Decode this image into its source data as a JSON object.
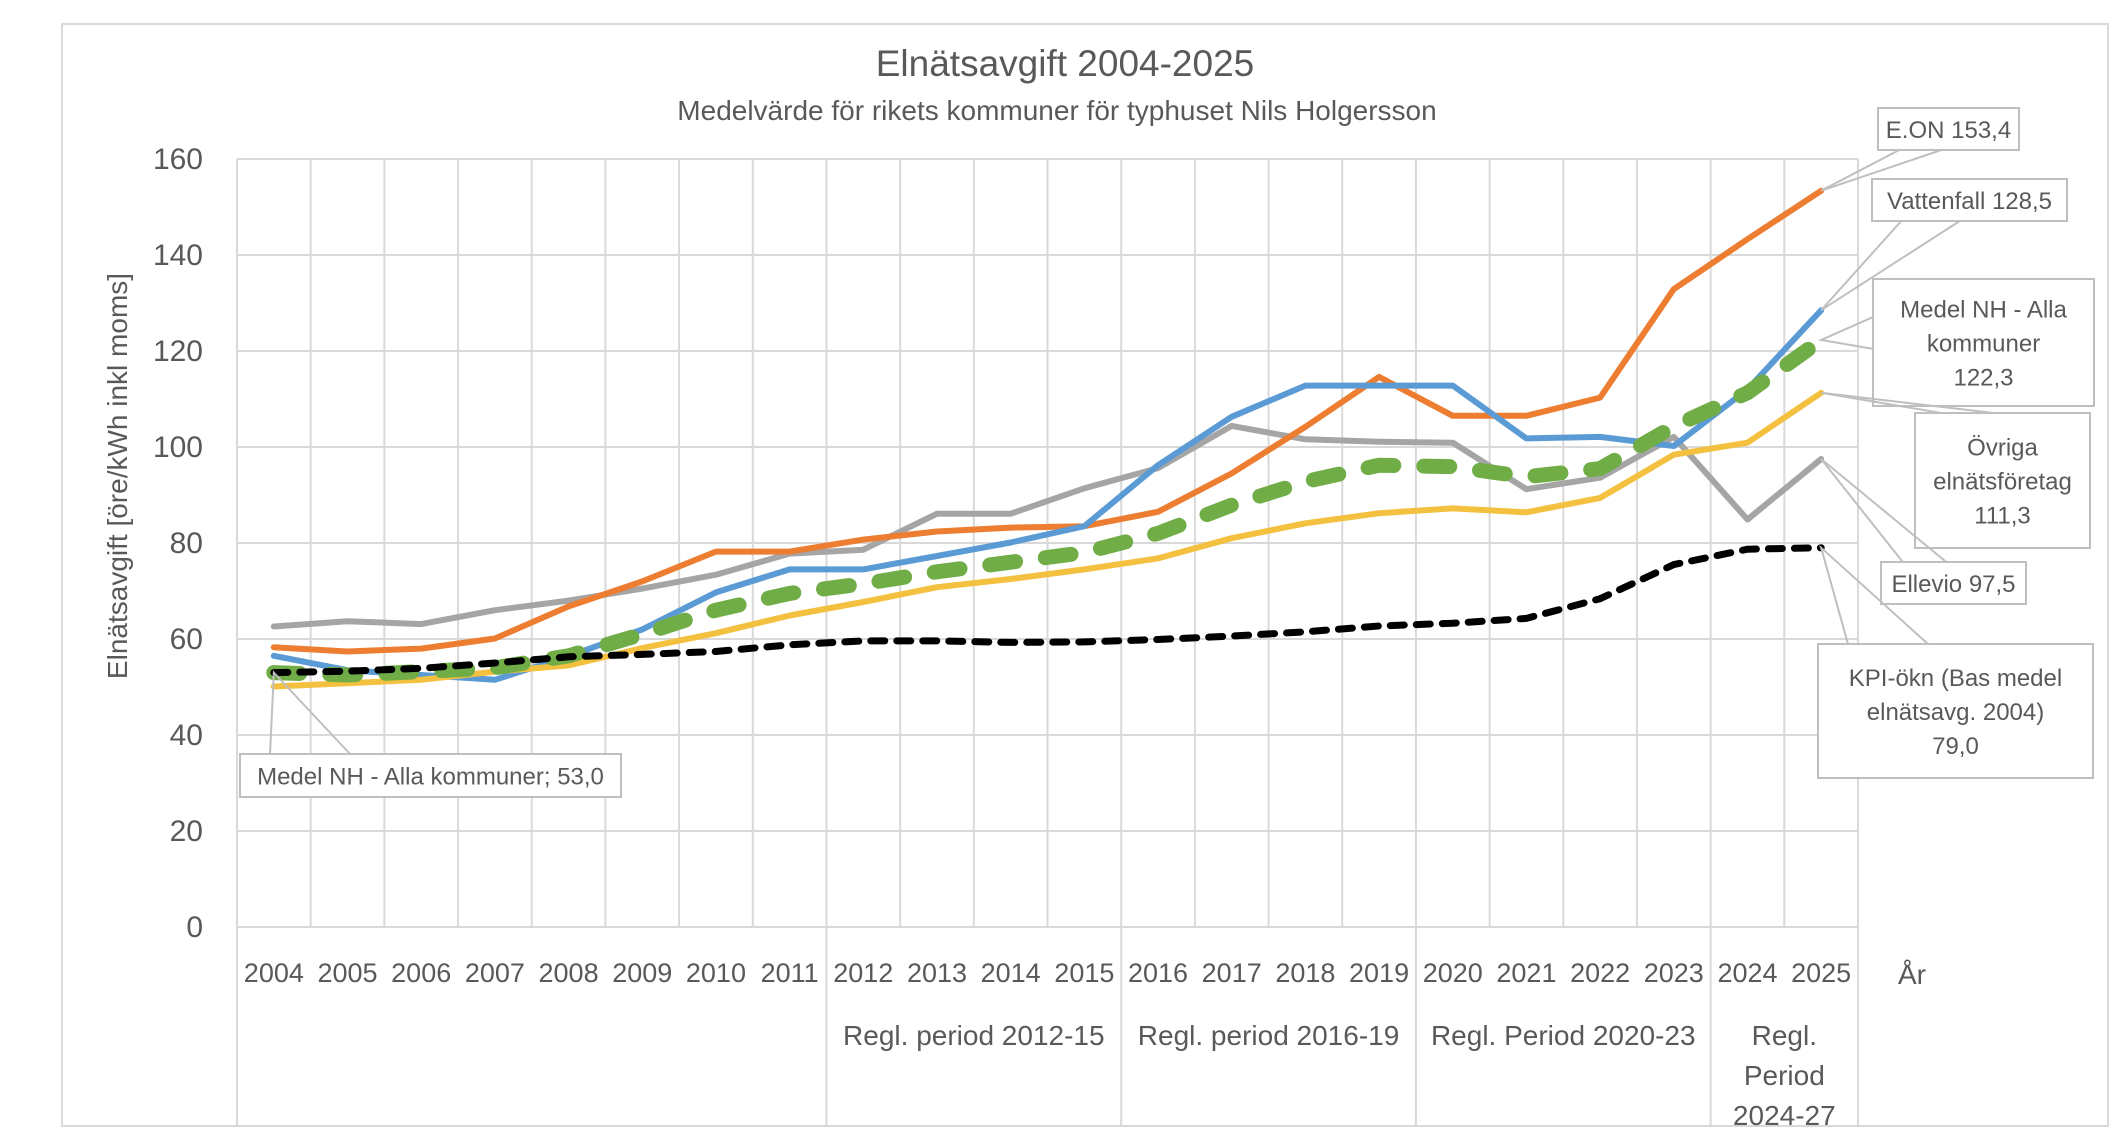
{
  "chart_data": {
    "type": "line",
    "title": "Elnätsavgift 2004-2025",
    "subtitle": "Medelvärde för rikets kommuner för typhuset Nils Holgersson",
    "xlabel": "År",
    "ylabel": "Elnätsavgift [öre/kWh inkl moms]",
    "ylim": [
      0,
      160
    ],
    "yticks": [
      "0",
      "20",
      "40",
      "60",
      "80",
      "100",
      "120",
      "140",
      "160"
    ],
    "grid": true,
    "categories": [
      "2004",
      "2005",
      "2006",
      "2007",
      "2008",
      "2009",
      "2010",
      "2011",
      "2012",
      "2013",
      "2014",
      "2015",
      "2016",
      "2017",
      "2018",
      "2019",
      "2020",
      "2021",
      "2022",
      "2023",
      "2024",
      "2025"
    ],
    "periods": [
      {
        "label": "",
        "start": "2004",
        "end": "2011"
      },
      {
        "label": "Regl. period 2012-15",
        "start": "2012",
        "end": "2015"
      },
      {
        "label": "Regl. period 2016-19",
        "start": "2016",
        "end": "2019"
      },
      {
        "label": "Regl. Period 2020-23",
        "start": "2020",
        "end": "2023"
      },
      {
        "label": "Regl. Period 2024-27",
        "lines": [
          "Regl.",
          "Period",
          "2024-27"
        ],
        "start": "2024",
        "end": "2025"
      }
    ],
    "series": [
      {
        "name": "Ellevio",
        "color": "#A5A5A5",
        "style": "solid",
        "values": [
          62.6,
          63.7,
          63.1,
          66.0,
          68.0,
          70.5,
          73.4,
          77.8,
          78.6,
          86.1,
          86.1,
          91.4,
          95.6,
          104.4,
          101.6,
          101.1,
          100.9,
          91.2,
          93.6,
          102.1,
          84.9,
          97.5
        ]
      },
      {
        "name": "E.ON",
        "color": "#ED7D31",
        "style": "solid",
        "values": [
          58.3,
          57.4,
          58.0,
          60.1,
          66.8,
          72.0,
          78.2,
          78.2,
          80.7,
          82.4,
          83.2,
          83.5,
          86.5,
          94.5,
          104.2,
          114.6,
          106.5,
          106.5,
          110.3,
          132.9,
          143.3,
          153.4
        ]
      },
      {
        "name": "Vattenfall",
        "color": "#5B9BD5",
        "style": "solid",
        "values": [
          56.5,
          53.5,
          52.5,
          51.5,
          56.4,
          62.0,
          69.7,
          74.5,
          74.5,
          77.3,
          80.1,
          83.5,
          96.2,
          106.3,
          112.8,
          112.8,
          112.8,
          101.8,
          102.1,
          100.2,
          112.0,
          128.5
        ]
      },
      {
        "name": "Övriga elnätsföretag",
        "color": "#F4C03F",
        "style": "solid",
        "values": [
          50.1,
          50.8,
          51.5,
          53.2,
          54.5,
          58.1,
          61.2,
          64.9,
          67.7,
          70.8,
          72.5,
          74.5,
          76.8,
          81.0,
          84.1,
          86.2,
          87.2,
          86.4,
          89.4,
          98.4,
          100.9,
          111.3
        ]
      },
      {
        "name": "KPI-ökn (Bas medel elnätsavg. 2004)",
        "color": "#000000",
        "style": "dashed",
        "values": [
          53.0,
          53.3,
          53.9,
          55.0,
          56.3,
          56.8,
          57.4,
          58.8,
          59.6,
          59.6,
          59.3,
          59.4,
          59.9,
          60.6,
          61.5,
          62.7,
          63.3,
          64.3,
          68.4,
          75.5,
          78.7,
          79.0
        ]
      },
      {
        "name": "Medel NH - Alla kommuner",
        "color": "#70AD47",
        "style": "dashed-thick",
        "values": [
          53.0,
          52.5,
          53.2,
          54.0,
          56.5,
          61.0,
          66.0,
          69.5,
          71.5,
          74.0,
          76.0,
          78.0,
          82.0,
          87.9,
          92.8,
          96.2,
          95.9,
          93.8,
          95.5,
          104.3,
          111.3,
          122.3
        ]
      }
    ],
    "annotations": [
      {
        "id": "eon",
        "series": "E.ON",
        "year": "2025",
        "lines": [
          "E.ON 153,4"
        ]
      },
      {
        "id": "vattenfall",
        "series": "Vattenfall",
        "year": "2025",
        "lines": [
          "Vattenfall 128,5"
        ]
      },
      {
        "id": "medel-end",
        "series": "Medel NH - Alla kommuner",
        "year": "2025",
        "lines": [
          "Medel NH - Alla",
          "kommuner",
          "122,3"
        ]
      },
      {
        "id": "ovriga",
        "series": "Övriga elnätsföretag",
        "year": "2025",
        "lines": [
          "Övriga",
          "elnätsföretag",
          "111,3"
        ]
      },
      {
        "id": "ellevio",
        "series": "Ellevio",
        "year": "2025",
        "lines": [
          "Ellevio 97,5"
        ]
      },
      {
        "id": "kpi",
        "series": "KPI-ökn (Bas medel elnätsavg. 2004)",
        "year": "2025",
        "lines": [
          "KPI-ökn (Bas medel",
          "elnätsavg. 2004)",
          "79,0"
        ]
      },
      {
        "id": "medel-start",
        "series": "Medel NH - Alla kommuner",
        "year": "2004",
        "lines": [
          "Medel NH - Alla kommuner; 53,0"
        ]
      }
    ]
  }
}
